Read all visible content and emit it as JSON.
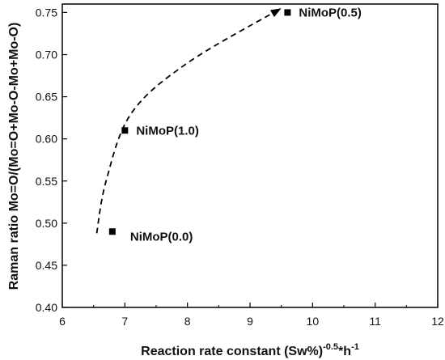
{
  "chart_data": {
    "type": "scatter",
    "xlabel": "Reaction rate constant (Sw%)",
    "xlabel_sup": "-0.5",
    "xlabel_tail": "*h",
    "xlabel_sup2": "-1",
    "ylabel": "Raman ratio Mo=O/(Mo=O+Mo-O-Mo+Mo-O)",
    "xlim": [
      6,
      12
    ],
    "ylim": [
      0.4,
      0.76
    ],
    "x_ticks": [
      6,
      7,
      8,
      9,
      10,
      11,
      12
    ],
    "x_tick_labels": [
      "6",
      "7",
      "8",
      "9",
      "10",
      "11",
      "12"
    ],
    "y_ticks": [
      0.4,
      0.45,
      0.5,
      0.55,
      0.6,
      0.65,
      0.7,
      0.75
    ],
    "y_tick_labels": [
      "0.40",
      "0.45",
      "0.50",
      "0.55",
      "0.60",
      "0.65",
      "0.70",
      "0.75"
    ],
    "grid": false,
    "points": [
      {
        "label": "NiMoP(0.0)",
        "x": 6.8,
        "y": 0.49
      },
      {
        "label": "NiMoP(1.0)",
        "x": 7.0,
        "y": 0.61
      },
      {
        "label": "NiMoP(0.5)",
        "x": 9.6,
        "y": 0.75
      }
    ],
    "trend_arrow": {
      "style": "dashed",
      "path": [
        [
          6.55,
          0.488
        ],
        [
          6.7,
          0.55
        ],
        [
          7.1,
          0.63
        ],
        [
          8.0,
          0.69
        ],
        [
          9.5,
          0.755
        ]
      ]
    }
  }
}
